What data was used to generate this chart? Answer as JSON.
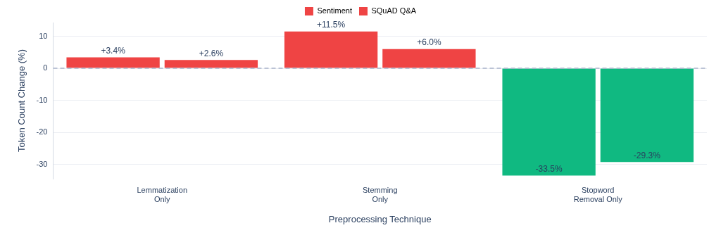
{
  "chart_data": {
    "type": "bar",
    "xlabel": "Preprocessing Technique",
    "ylabel": "Token Count Change (%)",
    "categories": [
      "Lemmatization\nOnly",
      "Stemming\nOnly",
      "Stopword\nRemoval Only"
    ],
    "series": [
      {
        "name": "Sentiment",
        "color": "#ef4444",
        "colors": [
          "#ef4444",
          "#ef4444",
          "#10b981"
        ],
        "values": [
          3.4,
          11.5,
          -33.5
        ],
        "value_labels": [
          "+3.4%",
          "+11.5%",
          "-33.5%"
        ]
      },
      {
        "name": "SQuAD Q&A",
        "color": "#ef4444",
        "colors": [
          "#ef4444",
          "#ef4444",
          "#10b981"
        ],
        "values": [
          2.6,
          6.0,
          -29.3
        ],
        "value_labels": [
          "+2.6%",
          "+6.0%",
          "-29.3%"
        ]
      }
    ],
    "ylim": [
      -34.5,
      14.3
    ],
    "yticks": [
      -30,
      -20,
      -10,
      0,
      10
    ],
    "grid": "y",
    "legend": "top",
    "ref_lines": [
      {
        "axis": "y",
        "value": 0,
        "color": "#aab4cc",
        "line_style": "dashed"
      }
    ]
  }
}
